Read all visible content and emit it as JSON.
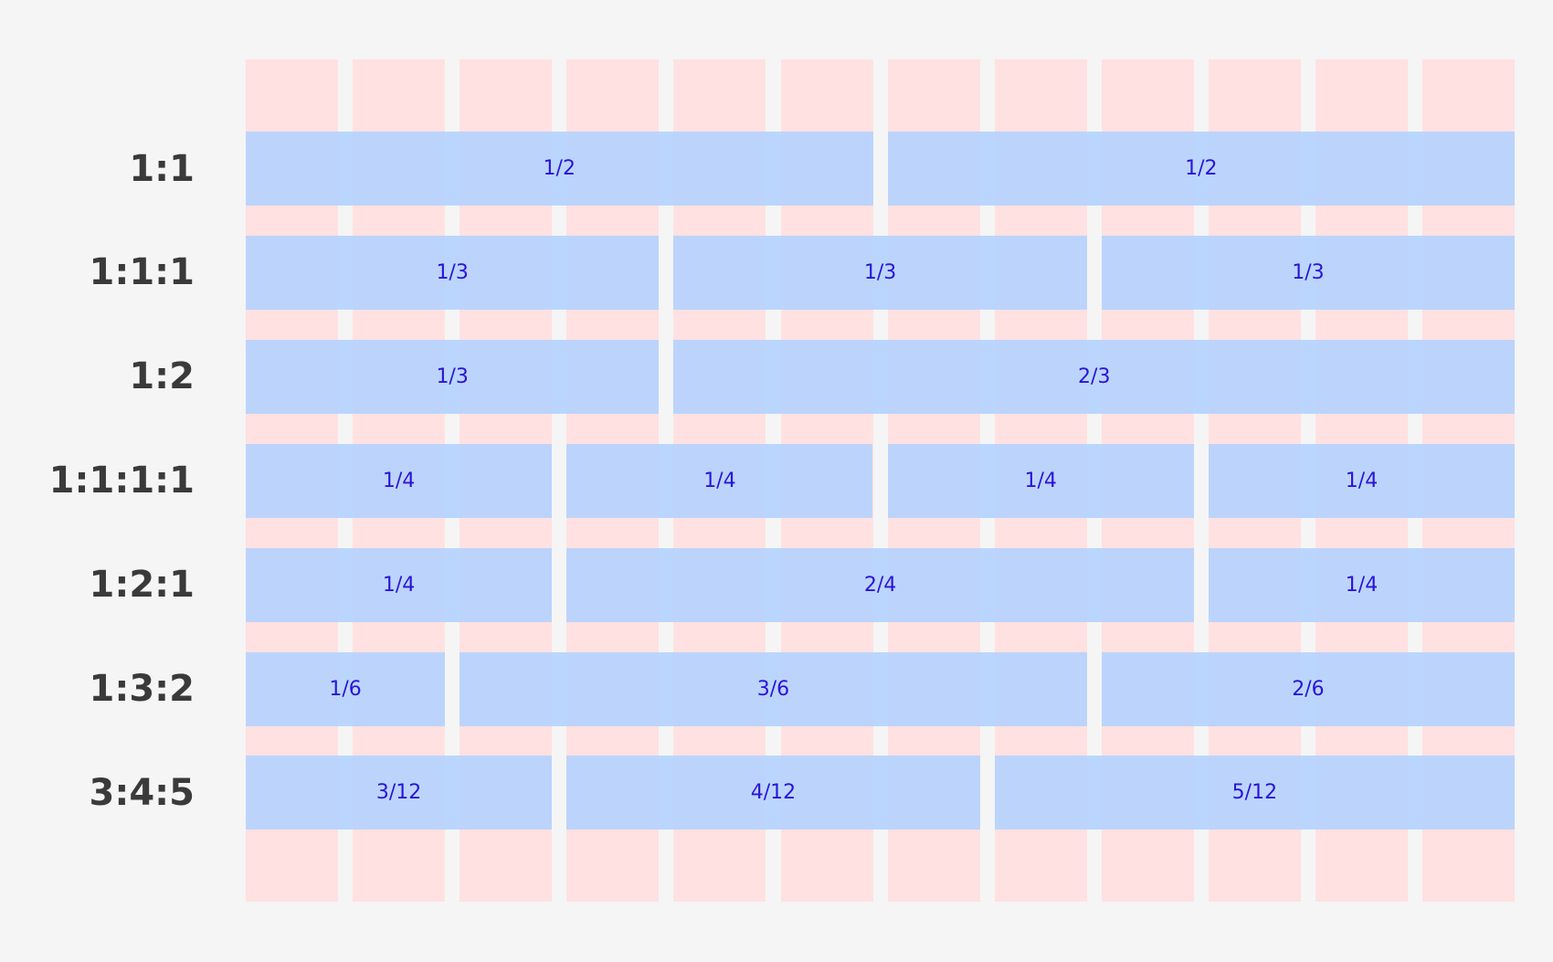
{
  "rows": [
    {
      "label": "1:1",
      "cells": [
        "1/2",
        "1/2"
      ]
    },
    {
      "label": "1:1:1",
      "cells": [
        "1/3",
        "1/3",
        "1/3"
      ]
    },
    {
      "label": "1:2",
      "cells": [
        "1/3",
        "2/3"
      ]
    },
    {
      "label": "1:1:1:1",
      "cells": [
        "1/4",
        "1/4",
        "1/4",
        "1/4"
      ]
    },
    {
      "label": "1:2:1",
      "cells": [
        "1/4",
        "2/4",
        "1/4"
      ]
    },
    {
      "label": "1:3:2",
      "cells": [
        "1/6",
        "3/6",
        "2/6"
      ]
    },
    {
      "label": "3:4:5",
      "cells": [
        "3/12",
        "4/12",
        "5/12"
      ]
    }
  ]
}
